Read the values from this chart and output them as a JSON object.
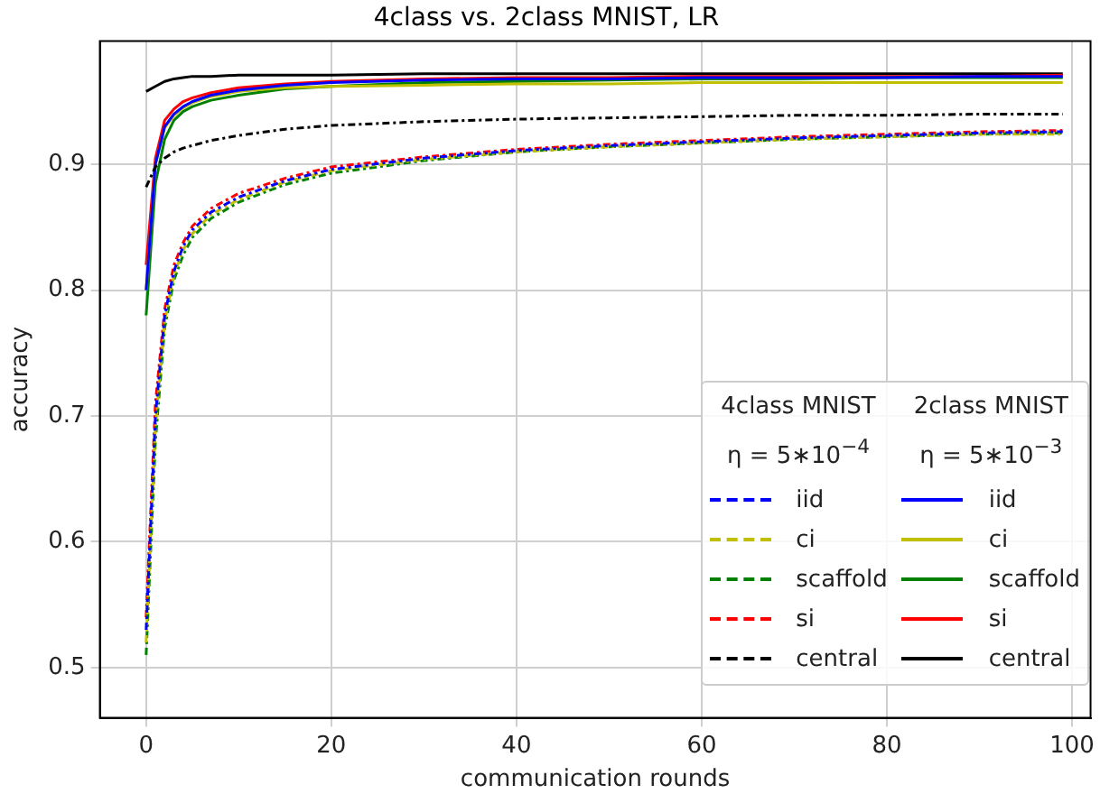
{
  "chart_data": {
    "type": "line",
    "title": "4class vs. 2class MNIST, LR",
    "xlabel": "communication rounds",
    "ylabel": "accuracy",
    "annotations": [
      "4class MNIST\nη = 5∗10$^{−4}$",
      "2class MNIST\nη = 5∗10$^{−3}$"
    ],
    "x": [
      0,
      1,
      2,
      3,
      4,
      5,
      7,
      10,
      15,
      20,
      30,
      40,
      50,
      60,
      70,
      80,
      90,
      99
    ],
    "xlim": [
      -5,
      102
    ],
    "xticks": [
      0,
      20,
      40,
      60,
      80,
      100
    ],
    "ylim": [
      0.46,
      0.998
    ],
    "yticks": [
      0.5,
      0.6,
      0.7,
      0.8,
      0.9
    ],
    "grid": true,
    "legend": "bottom right",
    "marker": "none",
    "series": [
      {
        "name": "iid",
        "color": "#0000ff",
        "line_style": "dashed",
        "values": [
          0.53,
          0.7,
          0.78,
          0.815,
          0.835,
          0.848,
          0.862,
          0.874,
          0.887,
          0.896,
          0.905,
          0.911,
          0.915,
          0.918,
          0.921,
          0.923,
          0.925,
          0.926
        ]
      },
      {
        "name": "ci",
        "color": "#bfbf00",
        "line_style": "dashed",
        "values": [
          0.52,
          0.69,
          0.775,
          0.812,
          0.832,
          0.845,
          0.86,
          0.872,
          0.886,
          0.895,
          0.904,
          0.91,
          0.914,
          0.917,
          0.92,
          0.922,
          0.924,
          0.924
        ]
      },
      {
        "name": "scaffold",
        "color": "#008000",
        "line_style": "dashed",
        "values": [
          0.51,
          0.68,
          0.77,
          0.808,
          0.828,
          0.842,
          0.857,
          0.87,
          0.884,
          0.893,
          0.903,
          0.91,
          0.914,
          0.917,
          0.92,
          0.922,
          0.924,
          0.925
        ]
      },
      {
        "name": "si",
        "color": "#ff0000",
        "line_style": "dashed",
        "values": [
          0.54,
          0.71,
          0.785,
          0.82,
          0.838,
          0.851,
          0.865,
          0.877,
          0.889,
          0.898,
          0.906,
          0.912,
          0.916,
          0.919,
          0.922,
          0.924,
          0.926,
          0.927
        ]
      },
      {
        "name": "central",
        "color": "#000000",
        "line_style": "dashed",
        "values": [
          0.882,
          0.898,
          0.905,
          0.91,
          0.913,
          0.915,
          0.919,
          0.923,
          0.928,
          0.931,
          0.934,
          0.936,
          0.937,
          0.938,
          0.939,
          0.939,
          0.94,
          0.94
        ]
      },
      {
        "name": "iid",
        "color": "#0000ff",
        "line_style": "solid",
        "values": [
          0.8,
          0.9,
          0.93,
          0.94,
          0.946,
          0.95,
          0.955,
          0.959,
          0.963,
          0.965,
          0.967,
          0.968,
          0.968,
          0.969,
          0.969,
          0.969,
          0.97,
          0.97
        ]
      },
      {
        "name": "ci",
        "color": "#bfbf00",
        "line_style": "solid",
        "values": [
          0.8,
          0.9,
          0.929,
          0.939,
          0.945,
          0.949,
          0.954,
          0.958,
          0.961,
          0.962,
          0.963,
          0.964,
          0.964,
          0.965,
          0.965,
          0.965,
          0.965,
          0.965
        ]
      },
      {
        "name": "scaffold",
        "color": "#008000",
        "line_style": "solid",
        "values": [
          0.78,
          0.885,
          0.92,
          0.935,
          0.942,
          0.946,
          0.951,
          0.955,
          0.96,
          0.962,
          0.965,
          0.966,
          0.967,
          0.968,
          0.968,
          0.969,
          0.969,
          0.969
        ]
      },
      {
        "name": "si",
        "color": "#ff0000",
        "line_style": "solid",
        "values": [
          0.82,
          0.905,
          0.935,
          0.944,
          0.95,
          0.953,
          0.957,
          0.961,
          0.964,
          0.966,
          0.968,
          0.969,
          0.969,
          0.97,
          0.97,
          0.97,
          0.97,
          0.971
        ]
      },
      {
        "name": "central",
        "color": "#000000",
        "line_style": "solid",
        "values": [
          0.958,
          0.962,
          0.966,
          0.968,
          0.969,
          0.97,
          0.97,
          0.971,
          0.971,
          0.971,
          0.972,
          0.972,
          0.972,
          0.972,
          0.972,
          0.972,
          0.972,
          0.972
        ]
      }
    ]
  }
}
